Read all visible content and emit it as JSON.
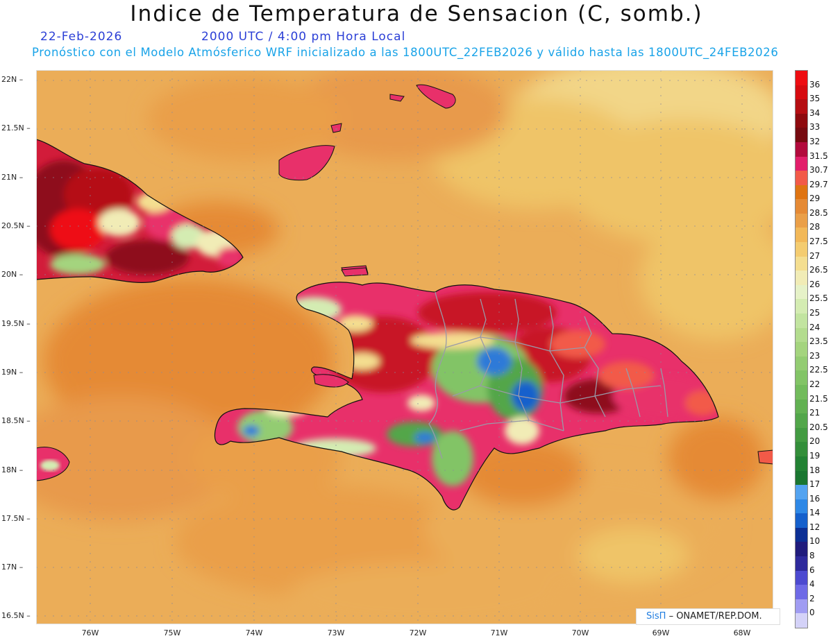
{
  "header": {
    "title": "Indice de Temperatura de Sensacion (C, somb.)",
    "date": "22-Feb-2026",
    "time": "2000 UTC / 4:00 pm Hora Local",
    "model_line": "Pronóstico con el Modelo Atmósferico WRF inicializado a las 1800UTC_22FEB2026 y válido hasta las  1800UTC_24FEB2026"
  },
  "map": {
    "lat_labels": [
      "22N",
      "21.5N",
      "21N",
      "20.5N",
      "20N",
      "19.5N",
      "19N",
      "18.5N",
      "18N",
      "17.5N",
      "17N",
      "16.5N"
    ],
    "lon_labels": [
      "76W",
      "75W",
      "74W",
      "73W",
      "72W",
      "71W",
      "70W",
      "69W",
      "68W"
    ],
    "lat_range": [
      16.5,
      22.1
    ],
    "lon_range": [
      -76.65,
      -67.6
    ],
    "colors": {
      "ocean_base": "#ebad58",
      "ocean_warm": "#e89a4c",
      "ocean_cool": "#efc468",
      "ocean_coolest": "#f2d688",
      "land_hot": "#c81226",
      "land_very_hot": "#8e0e1a",
      "land_pink": "#e8306a",
      "land_cool_green": "#5fb05c",
      "land_cold_blue": "#2f7ad8",
      "coast": "#111111",
      "border": "#9a9aa8"
    }
  },
  "colorbar": {
    "labels": [
      "36",
      "35",
      "34",
      "33",
      "32",
      "31.5",
      "30.7",
      "29.7",
      "29",
      "28.5",
      "28",
      "27.5",
      "27",
      "26.5",
      "26",
      "25.5",
      "25",
      "24",
      "23.5",
      "23",
      "22.5",
      "22",
      "21.5",
      "21",
      "20.5",
      "20",
      "19",
      "18",
      "17",
      "16",
      "14",
      "12",
      "10",
      "8",
      "6",
      "4",
      "2",
      "0"
    ],
    "colors": [
      "#ee0d12",
      "#d60b10",
      "#b50e12",
      "#8e0a0e",
      "#760a10",
      "#b20a3c",
      "#e21e6a",
      "#f25a48",
      "#df7412",
      "#e58a35",
      "#ea9f48",
      "#f2b858",
      "#f4cc70",
      "#f4de90",
      "#f1ecb6",
      "#e6f2c8",
      "#d4ecb2",
      "#c2e4a0",
      "#b3dc8e",
      "#a4d47e",
      "#93cc72",
      "#82c466",
      "#72bb5c",
      "#62b152",
      "#52a64a",
      "#439b42",
      "#338e3a",
      "#238234",
      "#1a7630",
      "#53a3f0",
      "#2e88e6",
      "#1560cc",
      "#0c2f94",
      "#201c7c",
      "#2e2a9c",
      "#4c4ad0",
      "#6e6ae6",
      "#a09cf2",
      "#d4d2f8"
    ]
  },
  "credit": {
    "logo": "SisΠ",
    "org": "– ONAMET/REP.DOM."
  }
}
